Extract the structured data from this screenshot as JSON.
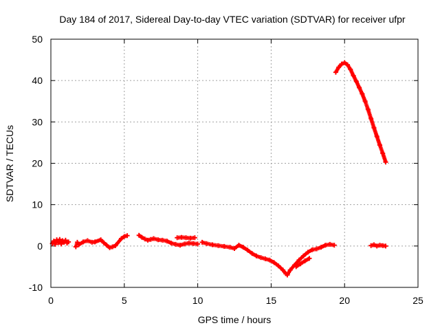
{
  "chart_data": {
    "type": "scatter",
    "title": "Day 184 of 2017, Sidereal Day-to-day VTEC variation (SDTVAR) for receiver ufpr",
    "xlabel": "GPS time / hours",
    "ylabel": "SDTVAR / TECUs",
    "xlim": [
      0,
      25
    ],
    "ylim": [
      -10,
      50
    ],
    "xticks": [
      0,
      5,
      10,
      15,
      20,
      25
    ],
    "yticks": [
      -10,
      0,
      10,
      20,
      30,
      40,
      50
    ],
    "grid": true,
    "series_color": "#ff0000",
    "series": [
      {
        "name": "SDTVAR",
        "points": [
          [
            0.1,
            0.6
          ],
          [
            0.2,
            1.2
          ],
          [
            0.3,
            0.4
          ],
          [
            0.4,
            1.5
          ],
          [
            0.5,
            0.8
          ],
          [
            0.6,
            1.6
          ],
          [
            0.7,
            0.5
          ],
          [
            0.8,
            1.3
          ],
          [
            0.9,
            0.9
          ],
          [
            1.0,
            1.4
          ],
          [
            1.1,
            0.7
          ],
          [
            1.2,
            1.0
          ],
          [
            1.7,
            -0.2
          ],
          [
            1.8,
            0.9
          ],
          [
            1.9,
            0.3
          ],
          [
            2.2,
            1.0
          ],
          [
            2.5,
            1.3
          ],
          [
            2.8,
            0.9
          ],
          [
            3.0,
            1.0
          ],
          [
            3.4,
            1.5
          ],
          [
            3.6,
            0.8
          ],
          [
            3.8,
            0.2
          ],
          [
            4.0,
            -0.4
          ],
          [
            4.2,
            -0.2
          ],
          [
            4.4,
            0.1
          ],
          [
            4.8,
            1.8
          ],
          [
            5.0,
            2.3
          ],
          [
            5.2,
            2.5
          ],
          [
            6.0,
            2.6
          ],
          [
            6.2,
            2.1
          ],
          [
            6.4,
            1.7
          ],
          [
            6.6,
            1.4
          ],
          [
            6.8,
            1.6
          ],
          [
            7.0,
            1.8
          ],
          [
            7.3,
            1.5
          ],
          [
            7.6,
            1.4
          ],
          [
            7.9,
            1.2
          ],
          [
            8.2,
            0.7
          ],
          [
            8.5,
            0.4
          ],
          [
            8.8,
            0.2
          ],
          [
            9.1,
            0.5
          ],
          [
            9.4,
            0.7
          ],
          [
            9.7,
            0.6
          ],
          [
            10.0,
            0.5
          ],
          [
            8.6,
            2.0
          ],
          [
            8.9,
            2.1
          ],
          [
            9.2,
            2.0
          ],
          [
            9.5,
            1.9
          ],
          [
            9.8,
            2.0
          ],
          [
            10.3,
            0.9
          ],
          [
            10.6,
            0.6
          ],
          [
            11.0,
            0.3
          ],
          [
            11.4,
            0.1
          ],
          [
            11.8,
            -0.1
          ],
          [
            12.2,
            -0.3
          ],
          [
            12.5,
            -0.6
          ],
          [
            12.8,
            0.2
          ],
          [
            13.1,
            -0.3
          ],
          [
            13.4,
            -1.0
          ],
          [
            13.7,
            -1.8
          ],
          [
            14.0,
            -2.4
          ],
          [
            14.3,
            -2.8
          ],
          [
            14.6,
            -3.1
          ],
          [
            14.9,
            -3.4
          ],
          [
            15.2,
            -4.0
          ],
          [
            15.5,
            -4.8
          ],
          [
            15.8,
            -5.8
          ],
          [
            16.0,
            -6.7
          ],
          [
            16.1,
            -7.0
          ],
          [
            16.3,
            -5.8
          ],
          [
            16.6,
            -4.6
          ],
          [
            16.9,
            -3.4
          ],
          [
            17.2,
            -2.4
          ],
          [
            17.5,
            -1.5
          ],
          [
            17.8,
            -0.9
          ],
          [
            18.1,
            -0.7
          ],
          [
            18.4,
            -0.3
          ],
          [
            18.7,
            0.2
          ],
          [
            19.0,
            0.4
          ],
          [
            19.3,
            0.2
          ],
          [
            16.7,
            -5.0
          ],
          [
            17.0,
            -4.3
          ],
          [
            17.3,
            -3.6
          ],
          [
            17.6,
            -3.0
          ],
          [
            19.4,
            42.0
          ],
          [
            19.6,
            43.2
          ],
          [
            19.8,
            44.0
          ],
          [
            20.0,
            44.3
          ],
          [
            20.2,
            43.8
          ],
          [
            20.4,
            42.7
          ],
          [
            20.6,
            41.2
          ],
          [
            20.8,
            39.8
          ],
          [
            21.0,
            38.3
          ],
          [
            21.2,
            36.8
          ],
          [
            21.4,
            35.0
          ],
          [
            21.6,
            33.0
          ],
          [
            21.8,
            30.8
          ],
          [
            22.0,
            28.6
          ],
          [
            22.2,
            26.5
          ],
          [
            22.4,
            24.4
          ],
          [
            22.6,
            22.4
          ],
          [
            22.8,
            20.3
          ],
          [
            21.8,
            0.1
          ],
          [
            22.0,
            0.3
          ],
          [
            22.2,
            0.0
          ],
          [
            22.4,
            0.2
          ],
          [
            22.6,
            0.1
          ],
          [
            22.8,
            0.0
          ]
        ]
      }
    ]
  }
}
